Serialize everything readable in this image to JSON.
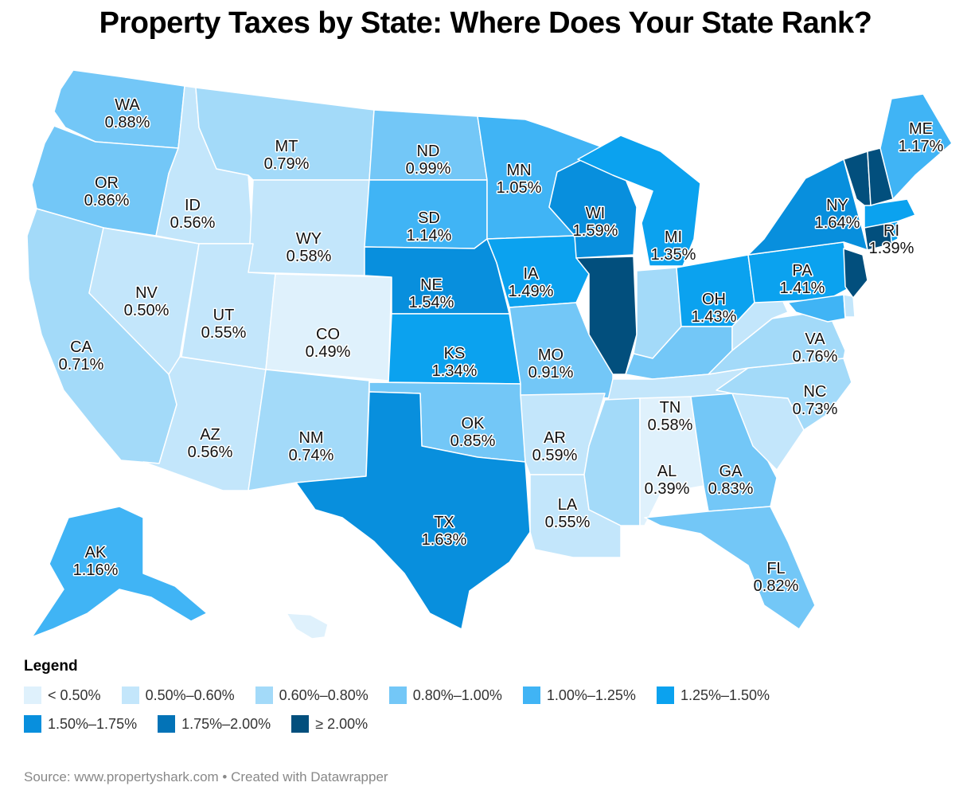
{
  "title": "Property Taxes by State: Where Does Your State Rank?",
  "legend": {
    "title": "Legend",
    "items": [
      {
        "label": "< 0.50%",
        "color": "#dff1fc"
      },
      {
        "label": "0.50%–0.60%",
        "color": "#c3e6fb"
      },
      {
        "label": "0.60%–0.80%",
        "color": "#a3daf9"
      },
      {
        "label": "0.80%–1.00%",
        "color": "#73c7f7"
      },
      {
        "label": "1.00%–1.25%",
        "color": "#40b4f5"
      },
      {
        "label": "1.25%–1.50%",
        "color": "#0ba2ef"
      },
      {
        "label": "1.50%–1.75%",
        "color": "#088fdd"
      },
      {
        "label": "1.75%–2.00%",
        "color": "#0373b7"
      },
      {
        "label": "≥ 2.00%",
        "color": "#024f7d"
      }
    ]
  },
  "states": [
    {
      "code": "WA",
      "value": "0.88%",
      "bin": 3
    },
    {
      "code": "OR",
      "value": "0.86%",
      "bin": 3
    },
    {
      "code": "CA",
      "value": "0.71%",
      "bin": 2
    },
    {
      "code": "NV",
      "value": "0.50%",
      "bin": 1
    },
    {
      "code": "ID",
      "value": "0.56%",
      "bin": 1
    },
    {
      "code": "MT",
      "value": "0.79%",
      "bin": 2
    },
    {
      "code": "WY",
      "value": "0.58%",
      "bin": 1
    },
    {
      "code": "UT",
      "value": "0.55%",
      "bin": 1
    },
    {
      "code": "AZ",
      "value": "0.56%",
      "bin": 1
    },
    {
      "code": "CO",
      "value": "0.49%",
      "bin": 0
    },
    {
      "code": "NM",
      "value": "0.74%",
      "bin": 2
    },
    {
      "code": "ND",
      "value": "0.99%",
      "bin": 3
    },
    {
      "code": "SD",
      "value": "1.14%",
      "bin": 4
    },
    {
      "code": "NE",
      "value": "1.54%",
      "bin": 6
    },
    {
      "code": "KS",
      "value": "1.34%",
      "bin": 5
    },
    {
      "code": "OK",
      "value": "0.85%",
      "bin": 3
    },
    {
      "code": "TX",
      "value": "1.63%",
      "bin": 6
    },
    {
      "code": "MN",
      "value": "1.05%",
      "bin": 4
    },
    {
      "code": "IA",
      "value": "1.49%",
      "bin": 5
    },
    {
      "code": "MO",
      "value": "0.91%",
      "bin": 3
    },
    {
      "code": "AR",
      "value": "0.59%",
      "bin": 1
    },
    {
      "code": "LA",
      "value": "0.55%",
      "bin": 1
    },
    {
      "code": "WI",
      "value": "1.59%",
      "bin": 6
    },
    {
      "code": "IL",
      "value": "",
      "bin": 8
    },
    {
      "code": "MI",
      "value": "1.35%",
      "bin": 5
    },
    {
      "code": "IN",
      "value": "",
      "bin": 2
    },
    {
      "code": "OH",
      "value": "1.43%",
      "bin": 5
    },
    {
      "code": "KY",
      "value": "",
      "bin": 3
    },
    {
      "code": "TN",
      "value": "0.58%",
      "bin": 1
    },
    {
      "code": "MS",
      "value": "",
      "bin": 2
    },
    {
      "code": "AL",
      "value": "0.39%",
      "bin": 0
    },
    {
      "code": "GA",
      "value": "0.83%",
      "bin": 3
    },
    {
      "code": "FL",
      "value": "0.82%",
      "bin": 3
    },
    {
      "code": "SC",
      "value": "",
      "bin": 1
    },
    {
      "code": "NC",
      "value": "0.73%",
      "bin": 2
    },
    {
      "code": "VA",
      "value": "0.76%",
      "bin": 2
    },
    {
      "code": "WV",
      "value": "",
      "bin": 1
    },
    {
      "code": "PA",
      "value": "1.41%",
      "bin": 5
    },
    {
      "code": "NY",
      "value": "1.64%",
      "bin": 6
    },
    {
      "code": "ME",
      "value": "1.17%",
      "bin": 4
    },
    {
      "code": "RI",
      "value": "1.39%",
      "bin": 5
    },
    {
      "code": "AK",
      "value": "1.16%",
      "bin": 4
    },
    {
      "code": "HI",
      "value": "",
      "bin": 0
    }
  ],
  "source": "Source: www.propertyshark.com • Created with Datawrapper"
}
